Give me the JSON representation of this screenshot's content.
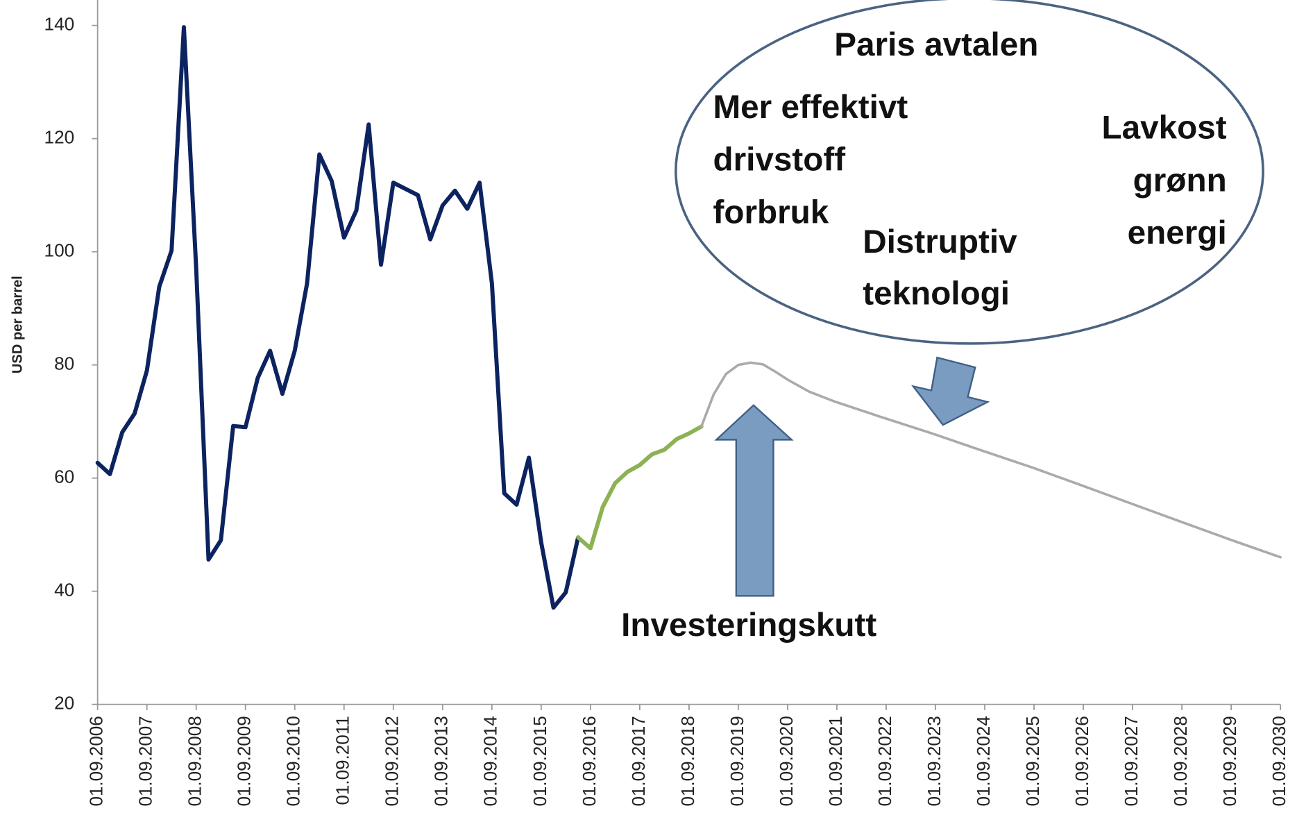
{
  "chart_data": {
    "type": "line",
    "y_label": "USD per barrel",
    "xlim": [
      2006.67,
      2030.67
    ],
    "xticks": [
      {
        "value": 2006.67,
        "label": "01.09.2006"
      },
      {
        "value": 2007.67,
        "label": "01.09.2007"
      },
      {
        "value": 2008.67,
        "label": "01.09.2008"
      },
      {
        "value": 2009.67,
        "label": "01.09.2009"
      },
      {
        "value": 2010.67,
        "label": "01.09.2010"
      },
      {
        "value": 2011.67,
        "label": "01.09.2011"
      },
      {
        "value": 2012.67,
        "label": "01.09.2012"
      },
      {
        "value": 2013.67,
        "label": "01.09.2013"
      },
      {
        "value": 2014.67,
        "label": "01.09.2014"
      },
      {
        "value": 2015.67,
        "label": "01.09.2015"
      },
      {
        "value": 2016.67,
        "label": "01.09.2016"
      },
      {
        "value": 2017.67,
        "label": "01.09.2017"
      },
      {
        "value": 2018.67,
        "label": "01.09.2018"
      },
      {
        "value": 2019.67,
        "label": "01.09.2019"
      },
      {
        "value": 2020.67,
        "label": "01.09.2020"
      },
      {
        "value": 2021.67,
        "label": "01.09.2021"
      },
      {
        "value": 2022.67,
        "label": "01.09.2022"
      },
      {
        "value": 2023.67,
        "label": "01.09.2023"
      },
      {
        "value": 2024.67,
        "label": "01.09.2024"
      },
      {
        "value": 2025.67,
        "label": "01.09.2025"
      },
      {
        "value": 2026.67,
        "label": "01.09.2026"
      },
      {
        "value": 2027.67,
        "label": "01.09.2027"
      },
      {
        "value": 2028.67,
        "label": "01.09.2028"
      },
      {
        "value": 2029.67,
        "label": "01.09.2029"
      },
      {
        "value": 2030.67,
        "label": "01.09.2030"
      }
    ],
    "ylim": [
      20,
      144.5
    ],
    "yticks": [
      20,
      40,
      60,
      80,
      100,
      120,
      140
    ],
    "grid": false,
    "series": [
      {
        "color": "#0d2360",
        "x": [
          2006.67,
          2006.92,
          2007.17,
          2007.42,
          2007.67,
          2007.92,
          2008.17,
          2008.42,
          2008.67,
          2008.92,
          2009.17,
          2009.42,
          2009.67,
          2009.92,
          2010.17,
          2010.42,
          2010.67,
          2010.92,
          2011.17,
          2011.42,
          2011.67,
          2011.92,
          2012.17,
          2012.42,
          2012.67,
          2012.92,
          2013.17,
          2013.42,
          2013.67,
          2013.92,
          2014.17,
          2014.42,
          2014.67,
          2014.92,
          2015.17,
          2015.42,
          2015.67,
          2015.92,
          2016.17,
          2016.42
        ],
        "values": [
          62.7,
          60.7,
          68.1,
          71.4,
          79.0,
          93.8,
          100.2,
          139.7,
          97,
          45.6,
          49.0,
          69.2,
          69.0,
          77.7,
          82.5,
          74.9,
          82.5,
          94.4,
          117.2,
          112.5,
          102.5,
          107.3,
          122.5,
          97.7,
          112.2,
          111.1,
          110.0,
          102.2,
          108.2,
          110.8,
          107.6,
          112.2,
          94.4,
          57.3,
          55.3,
          63.6,
          48.6,
          37.1,
          39.8,
          49.5
        ]
      },
      {
        "color": "#8db255",
        "x": [
          2016.42,
          2016.67,
          2016.92,
          2017.17,
          2017.42,
          2017.67,
          2017.92,
          2018.17,
          2018.42,
          2018.67,
          2018.92
        ],
        "values": [
          49.5,
          47.6,
          54.9,
          59.1,
          61.1,
          62.3,
          64.2,
          65.0,
          66.9,
          67.9,
          69.1
        ]
      },
      {
        "color": "#aaaaaa",
        "x": [
          2018.92,
          2019.17,
          2019.42,
          2019.67,
          2019.92,
          2020.17,
          2020.42,
          2020.67,
          2021.1,
          2021.6,
          2022.6,
          2023.6,
          2024.6,
          2025.66,
          2026.67,
          2027.67,
          2028.68,
          2029.69,
          2030.67
        ],
        "values": [
          69.1,
          74.8,
          78.4,
          80.0,
          80.4,
          80.1,
          78.8,
          77.4,
          75.3,
          73.6,
          70.7,
          67.9,
          64.9,
          61.8,
          58.6,
          55.4,
          52.2,
          49.0,
          46.0
        ]
      }
    ],
    "annotations": [
      {
        "lines": [
          "Paris avtalen"
        ]
      },
      {
        "lines": [
          "Mer effektivt",
          "drivstoff",
          "forbruk"
        ]
      },
      {
        "lines": [
          "Lavkost",
          "grønn",
          "energi"
        ]
      },
      {
        "lines": [
          "Distruptiv",
          "teknologi"
        ]
      },
      {
        "lines": [
          "Investeringskutt"
        ]
      }
    ]
  }
}
